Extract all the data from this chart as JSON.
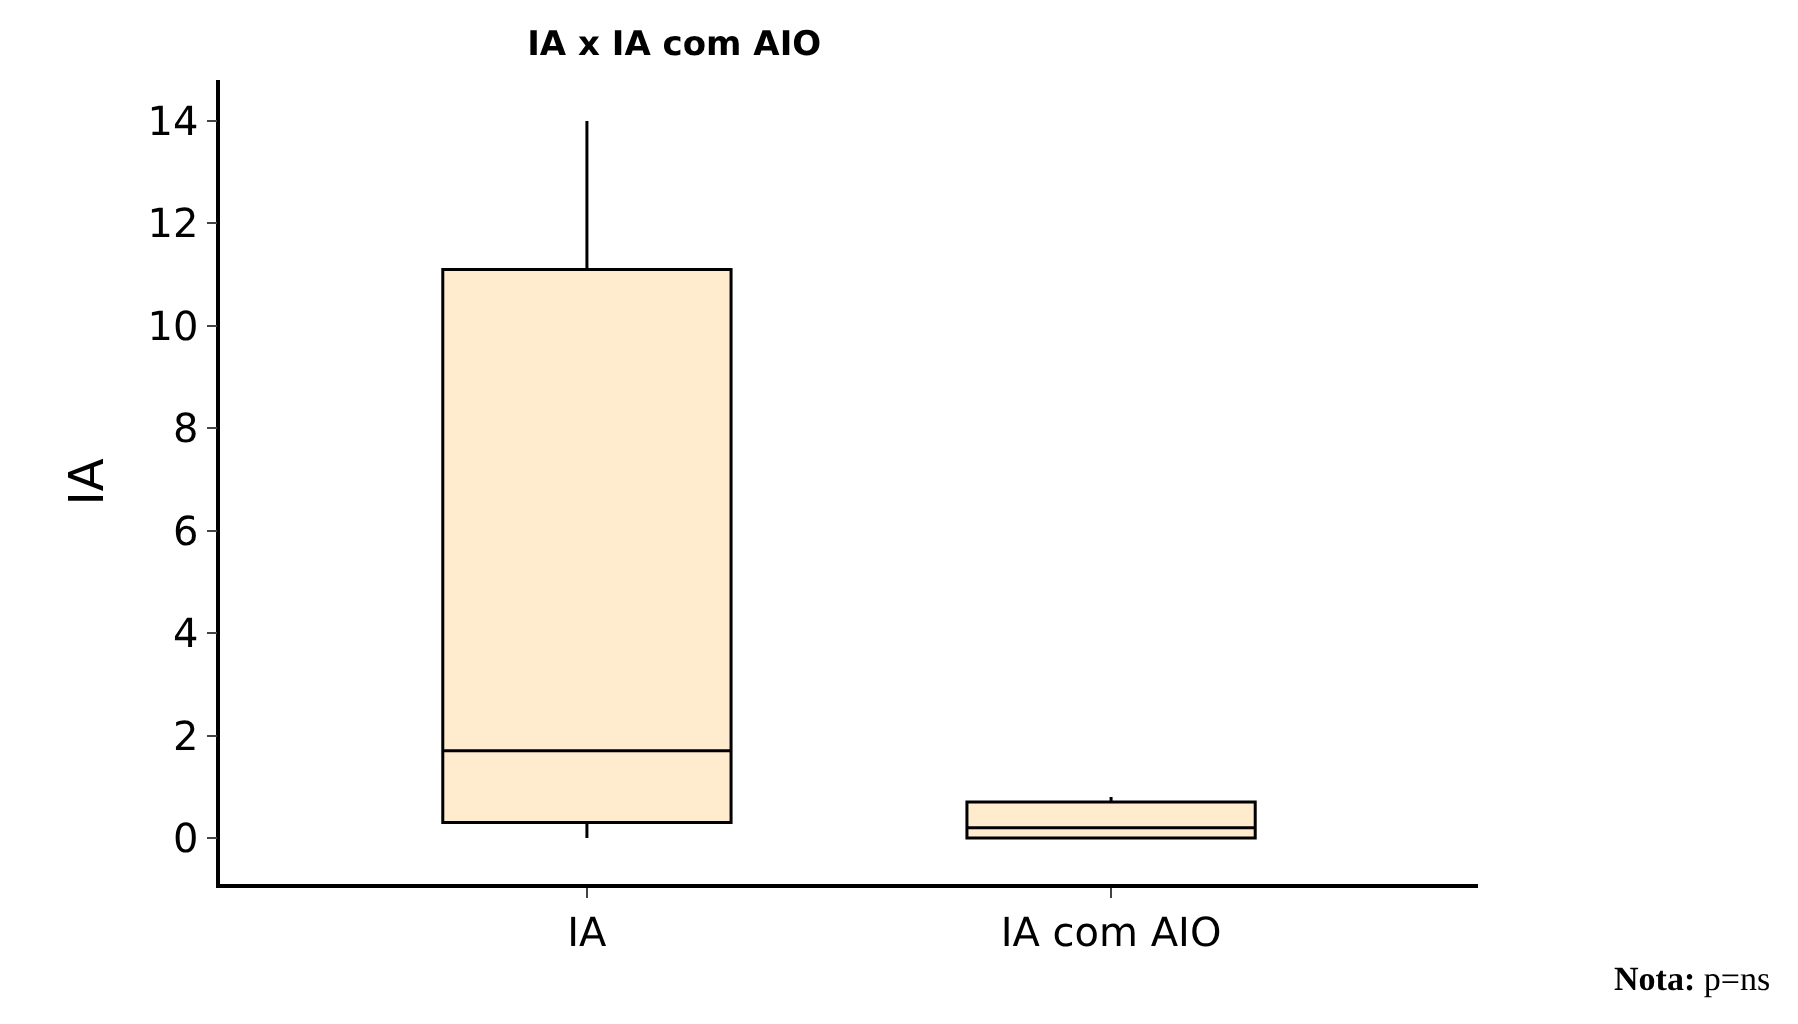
{
  "chart_data": {
    "type": "box",
    "title": "IA x IA com AIO",
    "ylabel": "IA",
    "categories": [
      "IA",
      "IA com AIO"
    ],
    "series": [
      {
        "color": "#ffebcd",
        "boxes": [
          {
            "low": 0,
            "q1": 0.3,
            "median": 1.7,
            "q3": 11.1,
            "high": 14
          },
          {
            "low": 0,
            "q1": 0,
            "median": 0.2,
            "q3": 0.7,
            "high": 0.8
          }
        ]
      }
    ],
    "ylim": [
      -0.9,
      14.8
    ],
    "yticks": [
      0,
      2,
      4,
      6,
      8,
      10,
      12,
      14
    ],
    "legend": false,
    "annotations": [
      "Nota: p=ns"
    ]
  }
}
